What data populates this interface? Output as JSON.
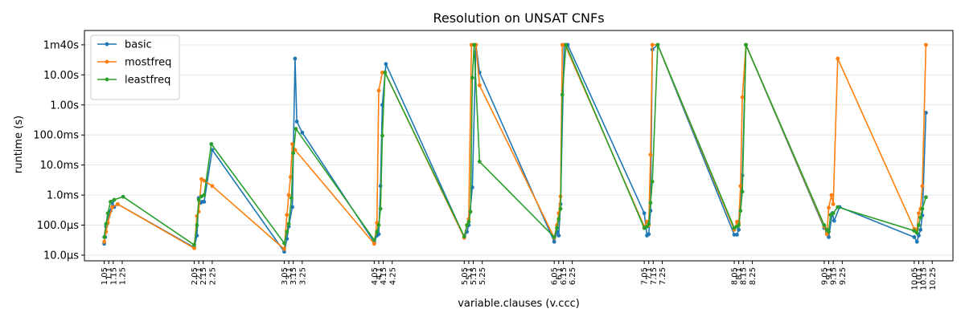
{
  "chart_data": {
    "type": "line",
    "title": "Resolution on UNSAT CNFs",
    "xlabel": "variable.clauses (v.ccc)",
    "ylabel": "runtime (s)",
    "y_scale": "log",
    "ylim": [
      6.5e-06,
      300
    ],
    "xlim": [
      0.83,
      10.48
    ],
    "grid": "horizontal",
    "legend_position": "top-left",
    "x_tick_values": [
      1.05,
      1.1,
      1.15,
      1.25,
      2.05,
      2.1,
      2.15,
      2.25,
      3.05,
      3.1,
      3.15,
      3.25,
      4.05,
      4.1,
      4.15,
      4.25,
      5.05,
      5.1,
      5.15,
      5.25,
      6.05,
      6.1,
      6.15,
      6.25,
      7.05,
      7.1,
      7.15,
      7.25,
      8.05,
      8.1,
      8.15,
      8.25,
      9.05,
      9.1,
      9.15,
      9.25,
      10.05,
      10.1,
      10.15,
      10.25
    ],
    "x_tick_labels": [
      "1.05",
      "1.1",
      "1.15",
      "1.25",
      "2.05",
      "2.1",
      "2.15",
      "2.25",
      "3.05",
      "3.1",
      "3.15",
      "3.25",
      "4.05",
      "4.1",
      "4.15",
      "4.25",
      "5.05",
      "5.1",
      "5.15",
      "5.25",
      "6.05",
      "6.1",
      "6.15",
      "6.25",
      "7.05",
      "7.1",
      "7.15",
      "7.25",
      "8.05",
      "8.1",
      "8.15",
      "8.25",
      "9.05",
      "9.1",
      "9.15",
      "9.25",
      "10.05",
      "10.1",
      "10.15",
      "10.25"
    ],
    "y_ticks": [
      {
        "value": 1e-05,
        "label": "10.0µs"
      },
      {
        "value": 0.0001,
        "label": "100.0µs"
      },
      {
        "value": 0.001,
        "label": "1.0ms"
      },
      {
        "value": 0.01,
        "label": "10.0ms"
      },
      {
        "value": 0.1,
        "label": "100.0ms"
      },
      {
        "value": 1,
        "label": "1.00s"
      },
      {
        "value": 10,
        "label": "10.00s"
      },
      {
        "value": 100,
        "label": "1m40s"
      }
    ],
    "series": [
      {
        "name": "basic",
        "color": "#1f77b4",
        "points": [
          [
            1.05,
            2.4e-05
          ],
          [
            1.06,
            4e-05
          ],
          [
            1.07,
            9e-05
          ],
          [
            1.08,
            0.00011
          ],
          [
            1.1,
            0.0002
          ],
          [
            1.12,
            0.0003
          ],
          [
            1.14,
            0.0006
          ],
          [
            1.16,
            0.0004
          ],
          [
            1.2,
            0.0005
          ],
          [
            2.05,
            1.8e-05
          ],
          [
            2.08,
            4.5e-05
          ],
          [
            2.1,
            0.0008
          ],
          [
            2.12,
            0.00055
          ],
          [
            2.14,
            0.0006
          ],
          [
            2.16,
            0.0006
          ],
          [
            2.25,
            0.032
          ],
          [
            3.05,
            1.3e-05
          ],
          [
            3.08,
            3.5e-05
          ],
          [
            3.1,
            9e-05
          ],
          [
            3.14,
            0.0004
          ],
          [
            3.17,
            35
          ],
          [
            3.19,
            0.28
          ],
          [
            3.25,
            0.12
          ],
          [
            4.05,
            2.7e-05
          ],
          [
            4.08,
            4.5e-05
          ],
          [
            4.1,
            5e-05
          ],
          [
            4.12,
            0.002
          ],
          [
            4.14,
            1.0
          ],
          [
            4.18,
            23
          ],
          [
            5.05,
            4e-05
          ],
          [
            5.08,
            6e-05
          ],
          [
            5.1,
            0.0001
          ],
          [
            5.14,
            0.0018
          ],
          [
            5.18,
            100
          ],
          [
            5.22,
            12
          ],
          [
            6.05,
            2.8e-05
          ],
          [
            6.08,
            6e-05
          ],
          [
            6.1,
            4.5e-05
          ],
          [
            6.12,
            0.0005
          ],
          [
            6.16,
            100
          ],
          [
            6.2,
            100
          ],
          [
            7.05,
            0.00025
          ],
          [
            7.08,
            4.5e-05
          ],
          [
            7.1,
            5e-05
          ],
          [
            7.12,
            0.0003
          ],
          [
            7.14,
            70
          ],
          [
            7.2,
            100
          ],
          [
            8.05,
            4.8e-05
          ],
          [
            8.08,
            4.8e-05
          ],
          [
            8.1,
            7e-05
          ],
          [
            8.14,
            0.0045
          ],
          [
            8.18,
            100
          ],
          [
            9.05,
            8e-05
          ],
          [
            9.08,
            6e-05
          ],
          [
            9.1,
            4e-05
          ],
          [
            9.14,
            0.00025
          ],
          [
            9.16,
            0.00014
          ],
          [
            9.22,
            0.0004
          ],
          [
            10.05,
            4e-05
          ],
          [
            10.08,
            2.8e-05
          ],
          [
            10.1,
            4.5e-05
          ],
          [
            10.12,
            7e-05
          ],
          [
            10.14,
            0.00021
          ],
          [
            10.18,
            0.55
          ]
        ]
      },
      {
        "name": "mostfreq",
        "color": "#ff7f0e",
        "points": [
          [
            1.05,
            2.8e-05
          ],
          [
            1.07,
            6e-05
          ],
          [
            1.09,
            0.00012
          ],
          [
            1.14,
            0.0004
          ],
          [
            1.2,
            0.0005
          ],
          [
            2.05,
            1.7e-05
          ],
          [
            2.08,
            0.0002
          ],
          [
            2.1,
            0.00028
          ],
          [
            2.13,
            0.0034
          ],
          [
            2.16,
            0.003
          ],
          [
            2.25,
            0.002
          ],
          [
            3.05,
            1.6e-05
          ],
          [
            3.08,
            0.00022
          ],
          [
            3.1,
            0.001
          ],
          [
            3.12,
            0.004
          ],
          [
            3.14,
            0.05
          ],
          [
            3.17,
            0.032
          ],
          [
            4.05,
            2.4e-05
          ],
          [
            4.08,
            0.00012
          ],
          [
            4.1,
            3.0
          ],
          [
            4.14,
            12
          ],
          [
            4.17,
            12
          ],
          [
            5.05,
            3.8e-05
          ],
          [
            5.08,
            0.0001
          ],
          [
            5.1,
            0.00016
          ],
          [
            5.13,
            100
          ],
          [
            5.18,
            100
          ],
          [
            5.22,
            4.5
          ],
          [
            6.05,
            3.8e-05
          ],
          [
            6.08,
            0.0001
          ],
          [
            6.1,
            0.00025
          ],
          [
            6.12,
            0.0009
          ],
          [
            6.14,
            100
          ],
          [
            6.17,
            100
          ],
          [
            7.05,
            9e-05
          ],
          [
            7.08,
            0.00013
          ],
          [
            7.1,
            0.0001
          ],
          [
            7.12,
            0.022
          ],
          [
            7.14,
            100
          ],
          [
            7.2,
            100
          ],
          [
            8.05,
            7e-05
          ],
          [
            8.08,
            0.00013
          ],
          [
            8.1,
            0.00012
          ],
          [
            8.12,
            0.002
          ],
          [
            8.14,
            1.8
          ],
          [
            8.18,
            100
          ],
          [
            9.05,
            9e-05
          ],
          [
            9.08,
            5e-05
          ],
          [
            9.1,
            0.00038
          ],
          [
            9.13,
            0.001
          ],
          [
            9.15,
            0.0005
          ],
          [
            9.2,
            35
          ],
          [
            10.05,
            7.5e-05
          ],
          [
            10.08,
            7e-05
          ],
          [
            10.1,
            0.00025
          ],
          [
            10.12,
            0.00035
          ],
          [
            10.14,
            0.002
          ],
          [
            10.18,
            100
          ]
        ]
      },
      {
        "name": "leastfreq",
        "color": "#2ca02c",
        "points": [
          [
            1.05,
            4e-05
          ],
          [
            1.07,
            0.00011
          ],
          [
            1.09,
            0.00025
          ],
          [
            1.12,
            0.0006
          ],
          [
            1.16,
            0.0007
          ],
          [
            1.26,
            0.00088
          ],
          [
            2.05,
            2.2e-05
          ],
          [
            2.08,
            0.0001
          ],
          [
            2.1,
            0.0007
          ],
          [
            2.13,
            0.0009
          ],
          [
            2.16,
            0.001
          ],
          [
            2.24,
            0.05
          ],
          [
            3.05,
            2.5e-05
          ],
          [
            3.08,
            6e-05
          ],
          [
            3.1,
            0.00011
          ],
          [
            3.13,
            0.0008
          ],
          [
            3.15,
            0.025
          ],
          [
            3.18,
            0.16
          ],
          [
            4.05,
            3.2e-05
          ],
          [
            4.08,
            6e-05
          ],
          [
            4.1,
            0.0001
          ],
          [
            4.12,
            0.00035
          ],
          [
            4.14,
            0.095
          ],
          [
            4.17,
            12
          ],
          [
            5.05,
            4.2e-05
          ],
          [
            5.08,
            0.0001
          ],
          [
            5.1,
            0.00013
          ],
          [
            5.12,
            0.00028
          ],
          [
            5.14,
            8.0
          ],
          [
            5.16,
            100
          ],
          [
            5.22,
            0.013
          ],
          [
            6.05,
            4e-05
          ],
          [
            6.08,
            8e-05
          ],
          [
            6.1,
            0.00016
          ],
          [
            6.12,
            0.00035
          ],
          [
            6.14,
            2.2
          ],
          [
            6.18,
            100
          ],
          [
            7.05,
            8e-05
          ],
          [
            7.08,
            9e-05
          ],
          [
            7.1,
            0.00011
          ],
          [
            7.12,
            0.00055
          ],
          [
            7.14,
            0.0028
          ],
          [
            7.2,
            100
          ],
          [
            8.05,
            8e-05
          ],
          [
            8.08,
            9e-05
          ],
          [
            8.1,
            0.0001
          ],
          [
            8.12,
            0.0003
          ],
          [
            8.14,
            0.0013
          ],
          [
            8.18,
            100
          ],
          [
            9.05,
            0.0001
          ],
          [
            9.08,
            7e-05
          ],
          [
            9.1,
            6e-05
          ],
          [
            9.12,
            0.00022
          ],
          [
            9.15,
            0.00025
          ],
          [
            9.2,
            0.0004
          ],
          [
            10.05,
            6.5e-05
          ],
          [
            10.08,
            5.5e-05
          ],
          [
            10.1,
            0.0001
          ],
          [
            10.12,
            0.00018
          ],
          [
            10.14,
            0.00035
          ],
          [
            10.18,
            0.00085
          ]
        ]
      }
    ]
  }
}
